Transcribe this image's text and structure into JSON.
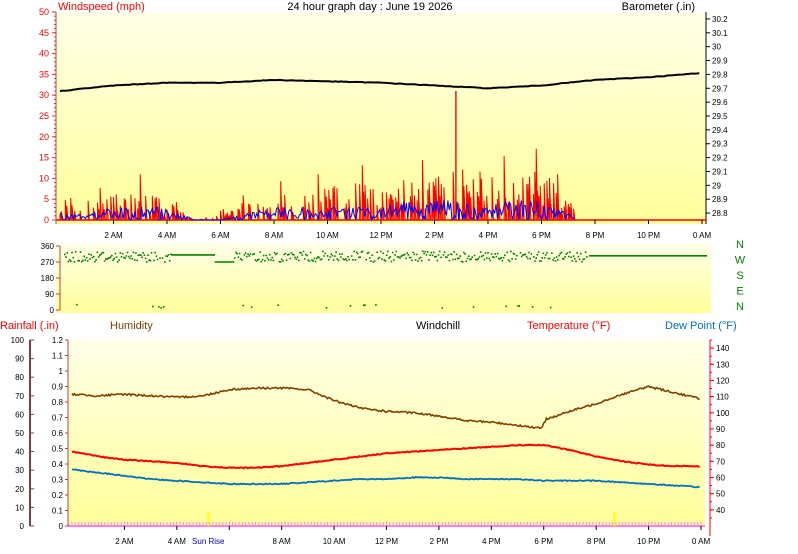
{
  "colors": {
    "plot_bg": "#ffffd2",
    "plot_bg_light": "#fffff0",
    "wind": "#ff0000",
    "gust": "#0000ff",
    "baro": "#000000",
    "dir": "#008000",
    "humidity": "#804000",
    "temperature": "#ff0000",
    "dewpoint": "#0070c0",
    "rain_axis": "#804040",
    "sun": "#ffff00"
  },
  "chart_data": [
    {
      "type": "line",
      "id": "wind-baro",
      "title": "24 hour graph day : June 19 2026",
      "left_label": "Windspeed (mph)",
      "right_label": "Barometer (.in)",
      "x_ticks": [
        "2 AM",
        "4 AM",
        "6 AM",
        "8 AM",
        "10 AM",
        "12 PM",
        "2 PM",
        "4 PM",
        "6 PM",
        "8 PM",
        "10 PM",
        "0 AM"
      ],
      "y_left": {
        "min": 0,
        "max": 50,
        "ticks": [
          "0",
          "5",
          "10",
          "15",
          "20",
          "25",
          "30",
          "35",
          "40",
          "45",
          "50"
        ]
      },
      "y_right": {
        "min": 28.75,
        "max": 30.25,
        "ticks": [
          "28.8",
          "28.9",
          "29",
          "29.1",
          "29.2",
          "29.3",
          "29.4",
          "29.5",
          "29.6",
          "29.7",
          "29.8",
          "29.9",
          "30",
          "30.1",
          "30.2"
        ]
      },
      "series": [
        {
          "key": "baro",
          "hours": [
            0,
            2,
            4,
            6,
            8,
            10,
            12,
            14,
            16,
            18,
            20,
            22,
            24
          ],
          "values": [
            29.68,
            29.72,
            29.74,
            29.74,
            29.76,
            29.75,
            29.74,
            29.72,
            29.7,
            29.72,
            29.76,
            29.78,
            29.81
          ]
        },
        {
          "key": "wind",
          "hours": [
            0,
            1,
            2,
            3,
            4,
            5,
            6,
            7,
            8,
            9,
            10,
            11,
            12,
            13,
            14,
            15,
            16,
            17,
            18,
            19,
            20,
            21,
            22,
            23,
            24
          ],
          "values": [
            2,
            3,
            4,
            5,
            3,
            0,
            1,
            3,
            4,
            5,
            5,
            6,
            6,
            6,
            7,
            8,
            7,
            7,
            8,
            3,
            0,
            0,
            0,
            0,
            0
          ]
        },
        {
          "key": "gust",
          "hours": [
            0,
            1,
            2,
            3,
            4,
            5,
            6,
            7,
            8,
            9,
            10,
            11,
            12,
            13,
            14,
            15,
            16,
            17,
            18,
            19,
            20,
            21,
            22,
            23,
            24
          ],
          "values": [
            1,
            1,
            2,
            2,
            2,
            0,
            0,
            1,
            2,
            2,
            2,
            2,
            2,
            3,
            3,
            3,
            3,
            3,
            3,
            1,
            0,
            0,
            0,
            0,
            0
          ]
        }
      ]
    },
    {
      "type": "scatter",
      "id": "wind-direction",
      "y_ticks": [
        "0",
        "90",
        "180",
        "270",
        "360"
      ],
      "y_range": [
        0,
        360
      ],
      "compass_labels": [
        "N",
        "W",
        "S",
        "E",
        "N"
      ]
    },
    {
      "type": "line",
      "id": "temp-hum",
      "header_labels": {
        "rain": "Rainfall (.in)",
        "humidity": "Humidity",
        "windchill": "Windchill",
        "temperature": "Temperature (°F)",
        "dewpoint": "Dew Point (°F)"
      },
      "x_ticks": [
        "2 AM",
        "4 AM",
        "Sun Rise",
        "8 AM",
        "10 AM",
        "12 PM",
        "2 PM",
        "4 PM",
        "6 PM",
        "8 PM",
        "10 PM",
        "0 AM"
      ],
      "rain_axis": {
        "min": 0,
        "max": 100,
        "ticks": [
          "0",
          "10",
          "20",
          "30",
          "40",
          "50",
          "60",
          "70",
          "80",
          "90",
          "100"
        ]
      },
      "inner_axis": {
        "min": 0,
        "max": 1.2,
        "ticks": [
          "0",
          "0.1",
          "0.2",
          "0.3",
          "0.4",
          "0.5",
          "0.6",
          "0.7",
          "0.8",
          "0.9",
          "1",
          "1.1",
          "1.2"
        ]
      },
      "temp_axis": {
        "min": 30,
        "max": 145,
        "ticks": [
          "40",
          "50",
          "60",
          "70",
          "80",
          "90",
          "100",
          "110",
          "120",
          "130",
          "140"
        ]
      },
      "sun_hours": [
        5.2,
        20.7
      ],
      "series": [
        {
          "key": "humidity",
          "hours": [
            0,
            1,
            2,
            3,
            4,
            5,
            6,
            7,
            8,
            9,
            10,
            11,
            12,
            13,
            14,
            15,
            16,
            17,
            17.9,
            18.1,
            19,
            20,
            21,
            22,
            23,
            24
          ],
          "values": [
            0.85,
            0.84,
            0.85,
            0.84,
            0.83,
            0.84,
            0.88,
            0.89,
            0.89,
            0.88,
            0.81,
            0.76,
            0.74,
            0.73,
            0.71,
            0.68,
            0.67,
            0.65,
            0.63,
            0.69,
            0.74,
            0.79,
            0.85,
            0.9,
            0.86,
            0.82
          ]
        },
        {
          "key": "temperature",
          "hours": [
            0,
            1,
            2,
            3,
            4,
            5,
            6,
            7,
            8,
            9,
            10,
            11,
            12,
            13,
            14,
            15,
            16,
            17,
            18,
            19,
            20,
            21,
            22,
            23,
            24
          ],
          "values": [
            76,
            73,
            71,
            70,
            69,
            67,
            66,
            66,
            67,
            69,
            71,
            73,
            75,
            76,
            77,
            78,
            79,
            80,
            80,
            77,
            73,
            70,
            68,
            67,
            67
          ]
        },
        {
          "key": "dewpoint",
          "hours": [
            0,
            1,
            2,
            3,
            4,
            5,
            6,
            7,
            8,
            9,
            10,
            11,
            12,
            13,
            14,
            15,
            16,
            17,
            18,
            19,
            20,
            21,
            22,
            23,
            24
          ],
          "values": [
            65,
            63,
            61,
            59,
            58,
            57,
            56,
            56,
            56,
            57,
            58,
            59,
            59,
            60,
            60,
            59,
            59,
            59,
            58,
            58,
            58,
            57,
            56,
            55,
            54
          ]
        }
      ]
    }
  ]
}
